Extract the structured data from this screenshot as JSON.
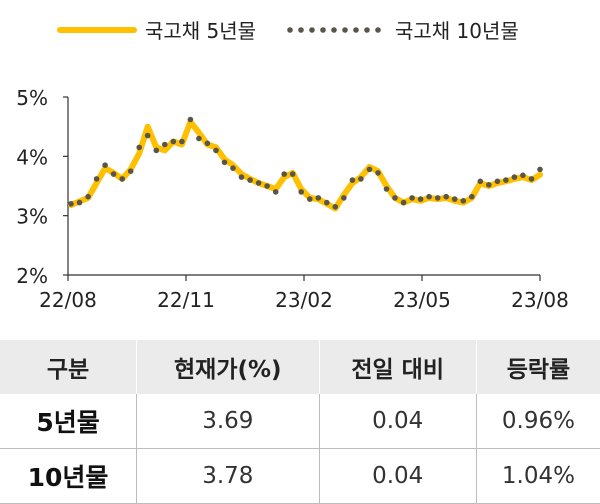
{
  "chart_data": {
    "type": "line",
    "title": "",
    "xlabel": "",
    "ylabel": "",
    "ylim": [
      2,
      5
    ],
    "y_ticks": [
      "2%",
      "3%",
      "4%",
      "5%"
    ],
    "x_ticks": [
      "22/08",
      "22/11",
      "23/02",
      "23/05",
      "23/08"
    ],
    "grid": false,
    "legend_position": "top",
    "colors": {
      "5y": "#FFC000",
      "10y": "#5A5549"
    },
    "x_dates": [
      "22/08",
      "22/08",
      "22/08",
      "22/08",
      "22/09",
      "22/09",
      "22/09",
      "22/09",
      "22/09",
      "22/10",
      "22/10",
      "22/10",
      "22/10",
      "22/10",
      "22/10",
      "22/10",
      "22/11",
      "22/11",
      "22/11",
      "22/11",
      "22/12",
      "22/12",
      "22/12",
      "22/12",
      "23/01",
      "23/01",
      "23/01",
      "23/01",
      "23/01",
      "23/02",
      "23/02",
      "23/02",
      "23/02",
      "23/03",
      "23/03",
      "23/03",
      "23/03",
      "23/04",
      "23/04",
      "23/04",
      "23/04",
      "23/05",
      "23/05",
      "23/05",
      "23/05",
      "23/06",
      "23/06",
      "23/06",
      "23/06",
      "23/07",
      "23/07",
      "23/07",
      "23/07",
      "23/08",
      "23/08",
      "23/08"
    ],
    "series": [
      {
        "name": "국고채 5년물",
        "values": [
          3.18,
          3.24,
          3.3,
          3.55,
          3.8,
          3.72,
          3.62,
          3.78,
          4.05,
          4.5,
          4.15,
          4.1,
          4.25,
          4.2,
          4.58,
          4.4,
          4.2,
          4.15,
          3.95,
          3.85,
          3.7,
          3.62,
          3.55,
          3.5,
          3.45,
          3.65,
          3.72,
          3.45,
          3.3,
          3.28,
          3.2,
          3.12,
          3.35,
          3.55,
          3.65,
          3.82,
          3.75,
          3.5,
          3.3,
          3.22,
          3.28,
          3.25,
          3.3,
          3.28,
          3.3,
          3.25,
          3.22,
          3.3,
          3.55,
          3.5,
          3.55,
          3.58,
          3.62,
          3.65,
          3.6,
          3.69
        ]
      },
      {
        "name": "국고채 10년물",
        "values": [
          3.2,
          3.22,
          3.32,
          3.62,
          3.85,
          3.7,
          3.62,
          3.75,
          4.15,
          4.35,
          4.1,
          4.2,
          4.25,
          4.25,
          4.62,
          4.3,
          4.22,
          4.1,
          3.9,
          3.8,
          3.65,
          3.6,
          3.55,
          3.5,
          3.4,
          3.7,
          3.7,
          3.4,
          3.28,
          3.3,
          3.22,
          3.15,
          3.3,
          3.6,
          3.62,
          3.78,
          3.72,
          3.45,
          3.3,
          3.22,
          3.3,
          3.28,
          3.32,
          3.3,
          3.32,
          3.28,
          3.25,
          3.32,
          3.58,
          3.52,
          3.58,
          3.6,
          3.65,
          3.68,
          3.62,
          3.78
        ]
      }
    ]
  },
  "table": {
    "headers": [
      "구분",
      "현재가(%)",
      "전일 대비",
      "등락률"
    ],
    "rows": [
      {
        "label": "5년물",
        "price": "3.69",
        "change": "0.04",
        "rate": "0.96%"
      },
      {
        "label": "10년물",
        "price": "3.78",
        "change": "0.04",
        "rate": "1.04%"
      }
    ]
  }
}
